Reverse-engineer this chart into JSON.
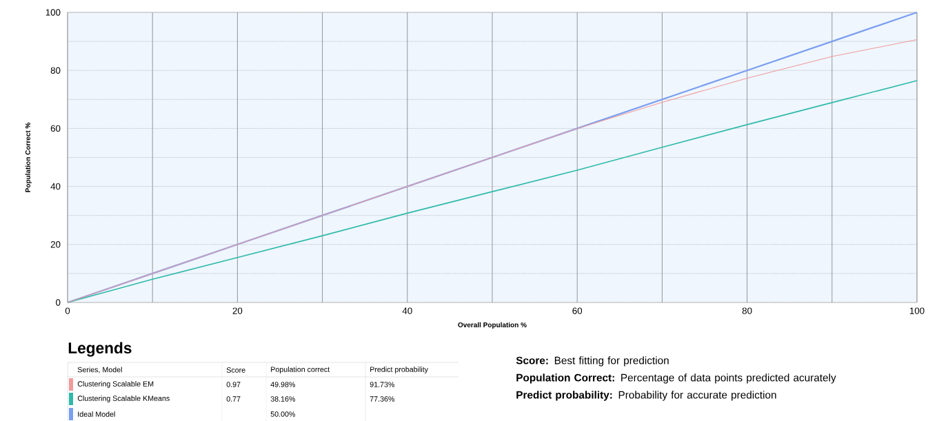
{
  "chart_data": {
    "type": "line",
    "xlabel": "Overall Population %",
    "ylabel": "Population Correct %",
    "x": [
      0,
      10,
      20,
      30,
      40,
      50,
      60,
      70,
      80,
      90,
      100
    ],
    "series": [
      {
        "name": "Clustering Scalable EM",
        "color": "#f09a9a",
        "values": [
          0,
          10,
          20,
          30,
          40,
          50,
          60,
          69,
          77.3,
          84.8,
          90.6
        ]
      },
      {
        "name": "Clustering Scalable KMeans",
        "color": "#2ebaa8",
        "values": [
          0,
          8,
          15.5,
          23,
          30.8,
          38.2,
          45.6,
          53.5,
          61.3,
          68.9,
          76.5
        ]
      },
      {
        "name": "Ideal Model",
        "color": "#7b9ff0",
        "values": [
          0,
          10,
          20,
          30,
          40,
          50,
          60,
          70,
          80,
          90,
          100
        ]
      }
    ],
    "xlim": [
      0,
      100
    ],
    "ylim": [
      0,
      100
    ],
    "xticks": [
      0,
      {
        "value": 10,
        "label": null
      },
      20,
      {
        "value": 30,
        "label": null
      },
      40,
      {
        "value": 50,
        "label": null
      },
      60,
      {
        "value": 70,
        "label": null
      },
      80,
      {
        "value": 90,
        "label": null
      },
      100
    ],
    "yticks": [
      0,
      {
        "value": 10,
        "label": null
      },
      20,
      {
        "value": 30,
        "label": null
      },
      40,
      {
        "value": 50,
        "label": null
      },
      60,
      {
        "value": 70,
        "label": null
      },
      80,
      {
        "value": 90,
        "label": null
      },
      100
    ],
    "grid": true,
    "legend": "bottom left",
    "legend_title": "Legends",
    "annotations": [
      "Series, Model",
      "Score",
      "Population correct",
      "Predict probability",
      "0.97",
      "49.98%",
      "91.73%",
      "0.77",
      "38.16%",
      "77.36%",
      "50.00%",
      "**Score:** Best fitting for prediction",
      "**Population Correct:** Percentage of data points predicted acurately",
      "**Predict probability:** Probability for accurate prediction"
    ]
  }
}
